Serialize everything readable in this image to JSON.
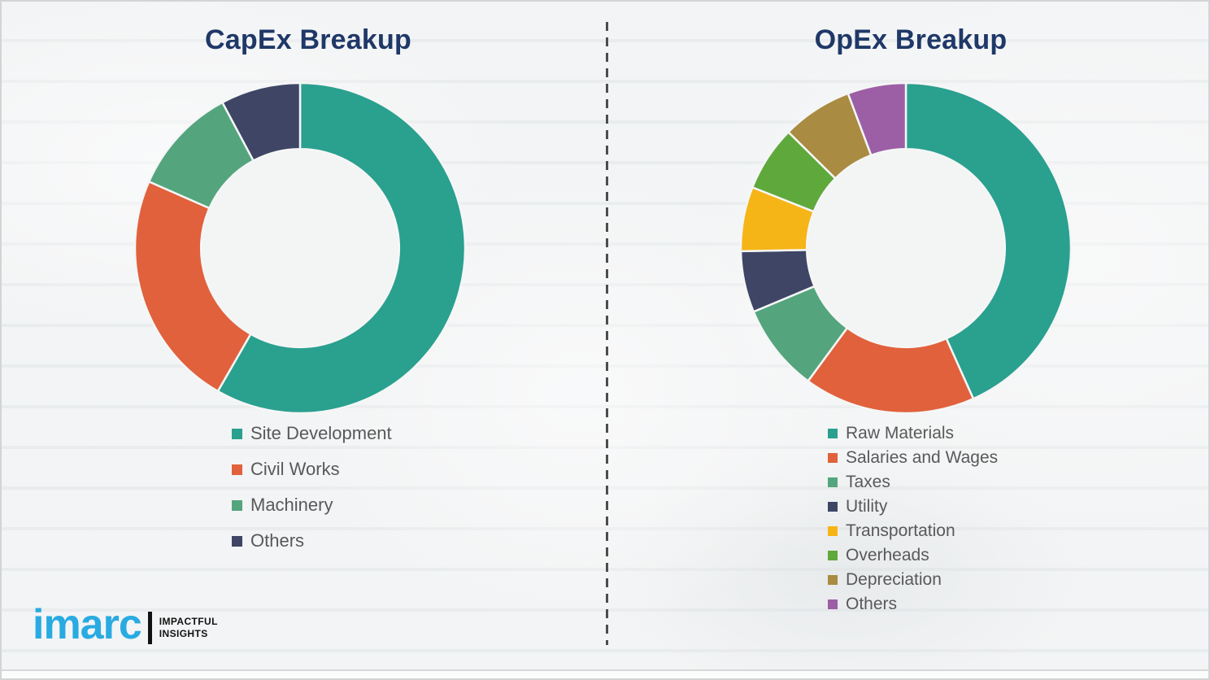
{
  "page": {
    "background_color": "#eff1f2",
    "divider_color": "#4d4d4d",
    "title_color": "#1f3868",
    "legend_text_color": "#595959"
  },
  "chart_data": [
    {
      "type": "pie",
      "subtype": "donut",
      "title": "CapEx Breakup",
      "categories": [
        "Site Development",
        "Civil Works",
        "Machinery",
        "Others"
      ],
      "values": [
        58.3,
        23.3,
        10.6,
        7.8
      ],
      "unit": "percent",
      "colors": [
        "#2AA08F",
        "#E0613C",
        "#54A57E",
        "#3E4565"
      ],
      "start_angle_deg": 0,
      "direction": "clockwise",
      "donut_hole_ratio": 0.6,
      "legend_position": "below-left",
      "data_labels": false
    },
    {
      "type": "pie",
      "subtype": "donut",
      "title": "OpEx Breakup",
      "categories": [
        "Raw Materials",
        "Salaries and Wages",
        "Taxes",
        "Utility",
        "Transportation",
        "Overheads",
        "Depreciation",
        "Others"
      ],
      "values": [
        43.3,
        16.8,
        8.6,
        6.0,
        6.3,
        6.4,
        6.9,
        5.7
      ],
      "unit": "percent",
      "colors": [
        "#2AA08F",
        "#E0613C",
        "#54A57E",
        "#3E4565",
        "#F6B517",
        "#5FA83C",
        "#A98B41",
        "#9C5FA5"
      ],
      "start_angle_deg": 0,
      "direction": "clockwise",
      "donut_hole_ratio": 0.6,
      "legend_position": "below-left",
      "data_labels": false
    }
  ],
  "logo": {
    "brand": "imarc",
    "tagline_line1": "IMPACTFUL",
    "tagline_line2": "INSIGHTS",
    "brand_color": "#29abe2"
  }
}
